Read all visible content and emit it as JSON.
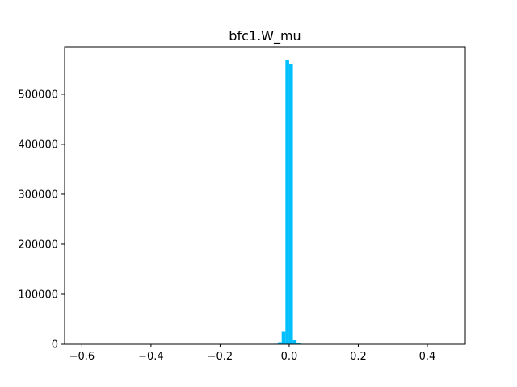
{
  "chart_data": {
    "type": "bar",
    "title": "bfc1.W_mu",
    "xlabel": "",
    "ylabel": "",
    "xlim": [
      -0.65,
      0.51
    ],
    "ylim": [
      0,
      595000
    ],
    "grid": false,
    "bar_color": "#00bfff",
    "bin_width": 0.0108,
    "x_ticks": [
      -0.6,
      -0.4,
      -0.2,
      0.0,
      0.2,
      0.4
    ],
    "x_tick_labels": [
      "−0.6",
      "−0.4",
      "−0.2",
      "0.0",
      "0.2",
      "0.4"
    ],
    "y_ticks": [
      0,
      100000,
      200000,
      300000,
      400000,
      500000
    ],
    "y_tick_labels": [
      "0",
      "100000",
      "200000",
      "300000",
      "400000",
      "500000"
    ],
    "bins": [
      {
        "x": -0.0432,
        "y": 1000
      },
      {
        "x": -0.0324,
        "y": 4000
      },
      {
        "x": -0.0216,
        "y": 25000
      },
      {
        "x": -0.0108,
        "y": 568000
      },
      {
        "x": 0.0,
        "y": 560000
      },
      {
        "x": 0.0108,
        "y": 8000
      },
      {
        "x": 0.0216,
        "y": 2000
      },
      {
        "x": 0.0324,
        "y": 500
      }
    ]
  }
}
